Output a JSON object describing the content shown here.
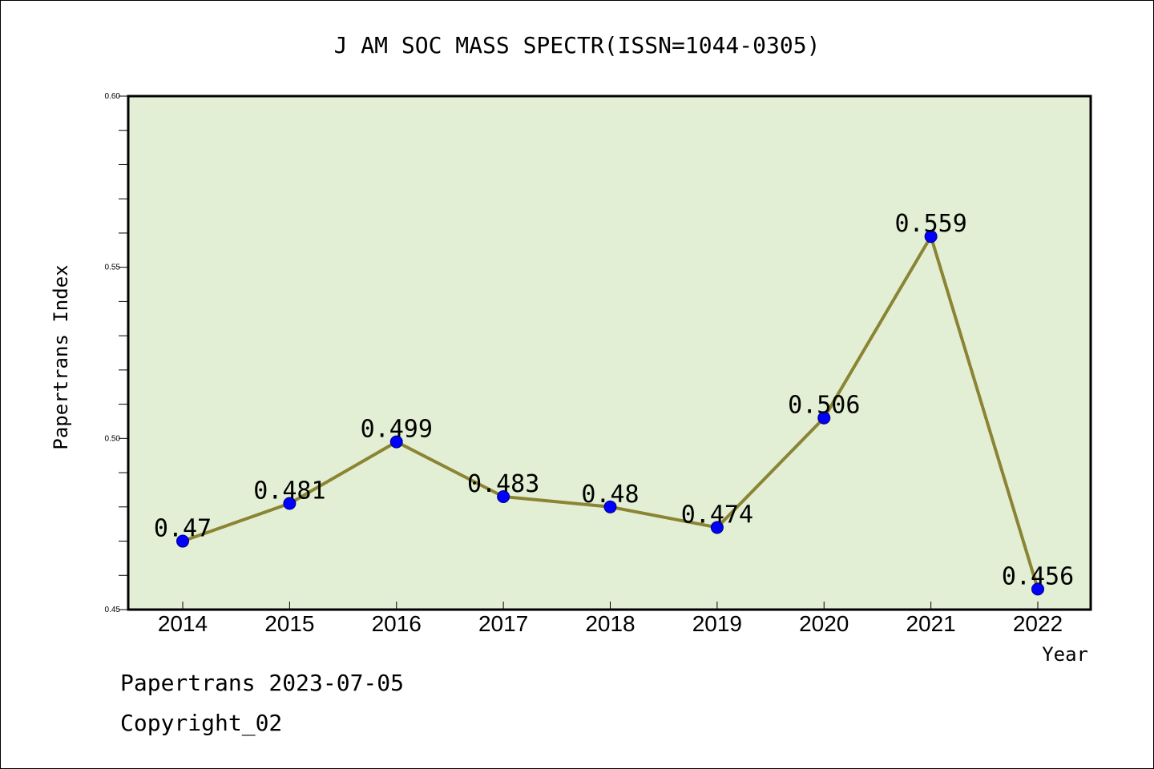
{
  "chart_data": {
    "type": "line",
    "title": "J AM SOC MASS SPECTR(ISSN=1044-0305)",
    "xlabel": "Year",
    "ylabel": "Papertrans Index",
    "categories": [
      "2014",
      "2015",
      "2016",
      "2017",
      "2018",
      "2019",
      "2020",
      "2021",
      "2022"
    ],
    "values": [
      0.47,
      0.481,
      0.499,
      0.483,
      0.48,
      0.474,
      0.506,
      0.559,
      0.456
    ],
    "value_labels": [
      "0.47",
      "0.481",
      "0.499",
      "0.483",
      "0.48",
      "0.474",
      "0.506",
      "0.559",
      "0.456"
    ],
    "ylim": [
      0.45,
      0.6
    ],
    "yticks": [
      "0.45",
      "0.50",
      "0.55",
      "0.60"
    ],
    "grid": false,
    "colors": {
      "plot_background": "#e2efd4",
      "line": "#8b8434",
      "marker": "#0000ff"
    }
  },
  "footer": {
    "line1": "Papertrans 2023-07-05",
    "line2": "Copyright_02"
  }
}
